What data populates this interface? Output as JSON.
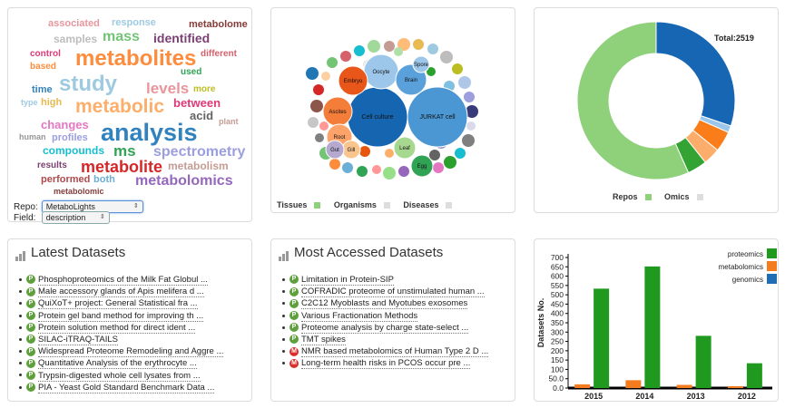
{
  "word_cloud": {
    "words": [
      {
        "text": "associated",
        "color": "#e7969c",
        "size": 11
      },
      {
        "text": "response",
        "color": "#9ecae1",
        "size": 11
      },
      {
        "text": "metabolome",
        "color": "#843c39",
        "size": 11
      },
      {
        "text": "samples",
        "color": "#bdbdbd",
        "size": 12
      },
      {
        "text": "mass",
        "color": "#74c476",
        "size": 16
      },
      {
        "text": "identified",
        "color": "#7b4173",
        "size": 14
      },
      {
        "text": "control",
        "color": "#de3977",
        "size": 10
      },
      {
        "text": "metabolites",
        "color": "#fd8d3c",
        "size": 24
      },
      {
        "text": "different",
        "color": "#d6616b",
        "size": 10
      },
      {
        "text": "based",
        "color": "#fd8d3c",
        "size": 10
      },
      {
        "text": "used",
        "color": "#31a354",
        "size": 10
      },
      {
        "text": "study",
        "color": "#9ecae1",
        "size": 24
      },
      {
        "text": "time",
        "color": "#3182bd",
        "size": 11
      },
      {
        "text": "levels",
        "color": "#e7969c",
        "size": 17
      },
      {
        "text": "more",
        "color": "#bcbd22",
        "size": 10
      },
      {
        "text": "type",
        "color": "#9ecae1",
        "size": 9
      },
      {
        "text": "high",
        "color": "#e7ba52",
        "size": 11
      },
      {
        "text": "metabolic",
        "color": "#fdae6b",
        "size": 21
      },
      {
        "text": "between",
        "color": "#de3977",
        "size": 13
      },
      {
        "text": "acid",
        "color": "#636363",
        "size": 13
      },
      {
        "text": "changes",
        "color": "#e377c2",
        "size": 13
      },
      {
        "text": "plant",
        "color": "#c49c94",
        "size": 9
      },
      {
        "text": "human",
        "color": "#969696",
        "size": 9
      },
      {
        "text": "profiles",
        "color": "#9c9ede",
        "size": 11
      },
      {
        "text": "analysis",
        "color": "#3182bd",
        "size": 27
      },
      {
        "text": "compounds",
        "color": "#17becf",
        "size": 12
      },
      {
        "text": "ms",
        "color": "#31a354",
        "size": 17
      },
      {
        "text": "spectrometry",
        "color": "#9c9ede",
        "size": 16
      },
      {
        "text": "results",
        "color": "#7b4173",
        "size": 10
      },
      {
        "text": "metabolite",
        "color": "#d62728",
        "size": 18
      },
      {
        "text": "metabolism",
        "color": "#c49c94",
        "size": 12
      },
      {
        "text": "performed",
        "color": "#ad494a",
        "size": 11
      },
      {
        "text": "both",
        "color": "#6baed6",
        "size": 11
      },
      {
        "text": "metabolomics",
        "color": "#9467bd",
        "size": 16
      },
      {
        "text": "metabolomic",
        "color": "#843c39",
        "size": 9
      }
    ],
    "repo_label": "Repo:",
    "repo_value": "MetaboLights",
    "field_label": "Field:",
    "field_value": "description"
  },
  "bubble_chart": {
    "labels": [
      "Cell culture",
      "JURKAT cell",
      "Oocyte",
      "Brain",
      "Embryo",
      "Ascites",
      "Root",
      "Gill",
      "Leaf",
      "Gut",
      "Spore",
      "Egg"
    ],
    "legend": [
      "Tissues",
      "Organisms",
      "Diseases"
    ]
  },
  "donut_chart": {
    "total_label": "Total:2519",
    "legend": [
      "Repos",
      "Omics"
    ]
  },
  "latest": {
    "title": "Latest Datasets",
    "items": [
      {
        "badge": "P",
        "text": "Phosphoproteomics of the Milk Fat Globul ..."
      },
      {
        "badge": "P",
        "text": "Male accessory glands of Apis melifera d ..."
      },
      {
        "badge": "P",
        "text": "QuiXoT+ project: General Statistical fra ..."
      },
      {
        "badge": "P",
        "text": "Protein gel band method for improving th ..."
      },
      {
        "badge": "P",
        "text": "Protein solution method for direct ident ..."
      },
      {
        "badge": "P",
        "text": "SILAC-iTRAQ-TAILS"
      },
      {
        "badge": "P",
        "text": "Widespread Proteome Remodeling and Aggre ..."
      },
      {
        "badge": "P",
        "text": "Quantitative Analysis of the erythrocyte ..."
      },
      {
        "badge": "P",
        "text": "Trypsin-digested whole cell lysates from ..."
      },
      {
        "badge": "P",
        "text": "PIA - Yeast Gold Standard Benchmark Data ..."
      }
    ]
  },
  "most_accessed": {
    "title": "Most Accessed Datasets",
    "items": [
      {
        "badge": "P",
        "text": "Limitation in Protein-SIP"
      },
      {
        "badge": "P",
        "text": "COFRADIC proteome of unstimulated human ..."
      },
      {
        "badge": "P",
        "text": "C2C12 Myoblasts and Myotubes exosomes"
      },
      {
        "badge": "P",
        "text": "Various Fractionation Methods"
      },
      {
        "badge": "P",
        "text": "Proteome analysis by charge state-select ..."
      },
      {
        "badge": "P",
        "text": "TMT spikes"
      },
      {
        "badge": "M",
        "text": "NMR based metabolomics of Human Type 2 D ..."
      },
      {
        "badge": "M",
        "text": "Long-term health risks in PCOS occur pre ..."
      }
    ]
  },
  "badge_colors": {
    "P": "#5ea03c",
    "M": "#d9302c"
  },
  "chart_data": {
    "type": "bar",
    "categories": [
      "2015",
      "2014",
      "2013",
      "2012"
    ],
    "series": [
      {
        "name": "proteomics",
        "color": "#1f9a1f",
        "values": [
          533,
          652,
          280,
          133
        ]
      },
      {
        "name": "metabolomics",
        "color": "#f47c1e",
        "values": [
          20,
          42,
          17,
          10
        ]
      },
      {
        "name": "genomics",
        "color": "#1f6db5",
        "values": [
          0,
          0,
          0,
          0
        ]
      }
    ],
    "ylabel": "Datasets No.",
    "xlabel": "",
    "ylim": [
      0,
      700
    ],
    "yticks": [
      "0.0",
      "50.0",
      "100",
      "150",
      "200",
      "250",
      "300",
      "350",
      "400",
      "450",
      "500",
      "550",
      "600",
      "650",
      "700"
    ],
    "legend_position": "top-right"
  }
}
